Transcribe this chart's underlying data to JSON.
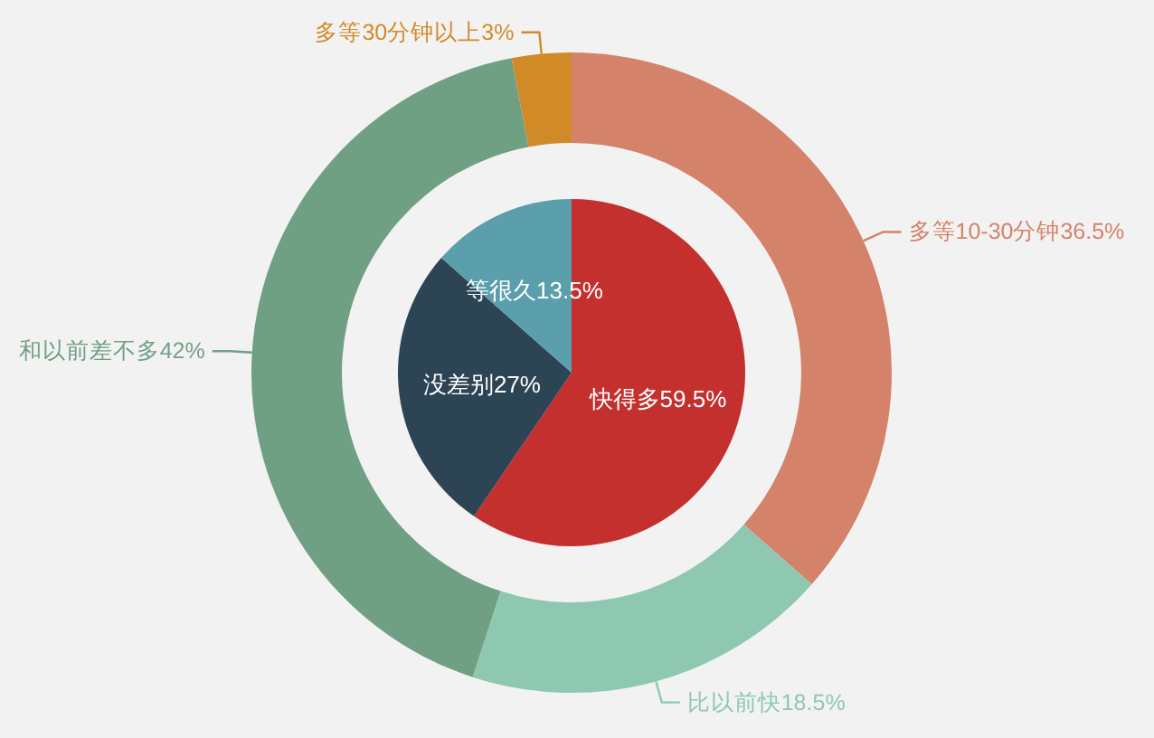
{
  "chart_data": [
    {
      "type": "pie",
      "categories": [
        "快得多",
        "没差别",
        "等很久"
      ],
      "values": [
        59.5,
        27,
        13.5
      ],
      "colors": [
        "#c4302e",
        "#2c4454",
        "#5a9fab"
      ],
      "value_labels": [
        "59.5%",
        "27%",
        "13.5%"
      ]
    },
    {
      "type": "donut",
      "categories": [
        "多等10-30分钟",
        "比以前快",
        "和以前差不多",
        "多等30分钟以上"
      ],
      "values": [
        36.5,
        18.5,
        42,
        3
      ],
      "colors": [
        "#d4826a",
        "#8ec8b0",
        "#70a083",
        "#d18a28"
      ],
      "value_labels": [
        "36.5%",
        "18.5%",
        "42%",
        "3%"
      ]
    }
  ]
}
